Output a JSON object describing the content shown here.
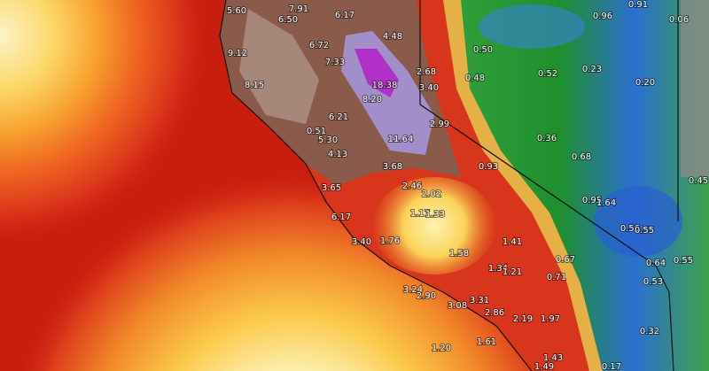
{
  "labels": [
    "5.60",
    "7.91",
    "6.17",
    "6.50",
    "9.12",
    "6.72",
    "4.48",
    "7.33",
    "2.68",
    "18.38",
    "8.15",
    "3.40",
    "8.20",
    "6.21",
    "2.99",
    "0.51",
    "11.64",
    "5.30",
    "4.13",
    "3.68",
    "0.93",
    "2.46",
    "2.02",
    "3.65",
    "1.17",
    "1.33",
    "6.17",
    "3.40",
    "1.76",
    "1.41",
    "1.58",
    "1.34",
    "1.21",
    "3.24",
    "2.90",
    "3.31",
    "3.08",
    "2.86",
    "2.19",
    "1.97",
    "0.71",
    "0.67",
    "1.20",
    "1.61",
    "1.43",
    "1.49",
    "0.17",
    "0.32",
    "0.53",
    "0.64",
    "0.55",
    "0.56",
    "0.55",
    "0.95",
    "1.64",
    "0.45",
    "0.68",
    "0.36",
    "0.20",
    "0.23",
    "0.52",
    "0.48",
    "0.50",
    "0.96",
    "0.91",
    "0.06"
  ]
}
